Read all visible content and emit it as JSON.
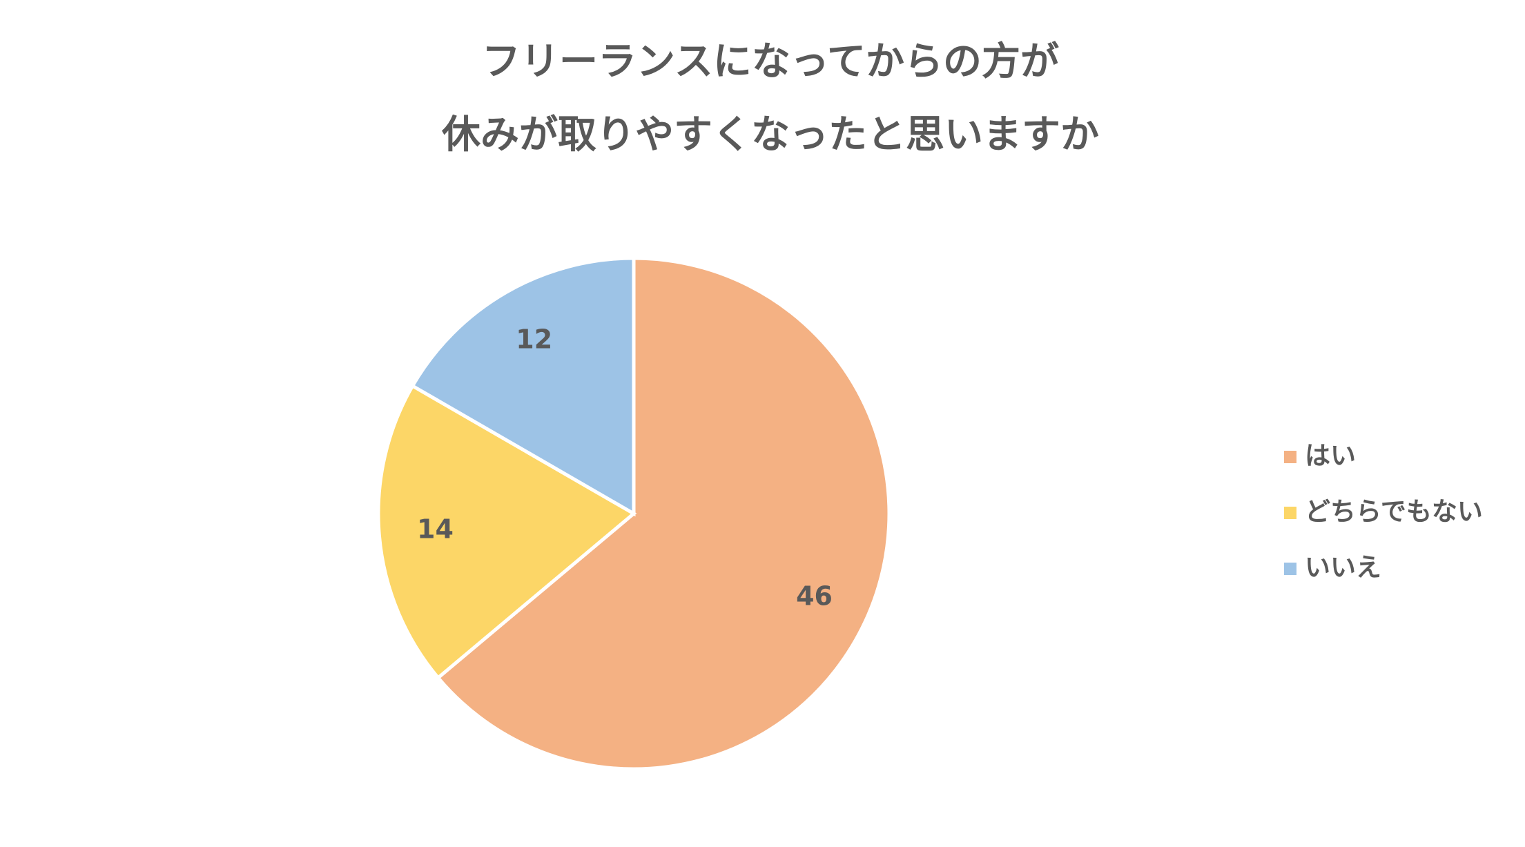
{
  "chart_data": {
    "type": "pie",
    "title": [
      "フリーランスになってからの方が",
      "休みが取りやすくなったと思いますか"
    ],
    "categories": [
      "はい",
      "どちらでもない",
      "いいえ"
    ],
    "values": [
      46,
      14,
      12
    ],
    "colors": [
      "#F4B183",
      "#FCD667",
      "#9DC3E6"
    ],
    "legend": "right"
  }
}
